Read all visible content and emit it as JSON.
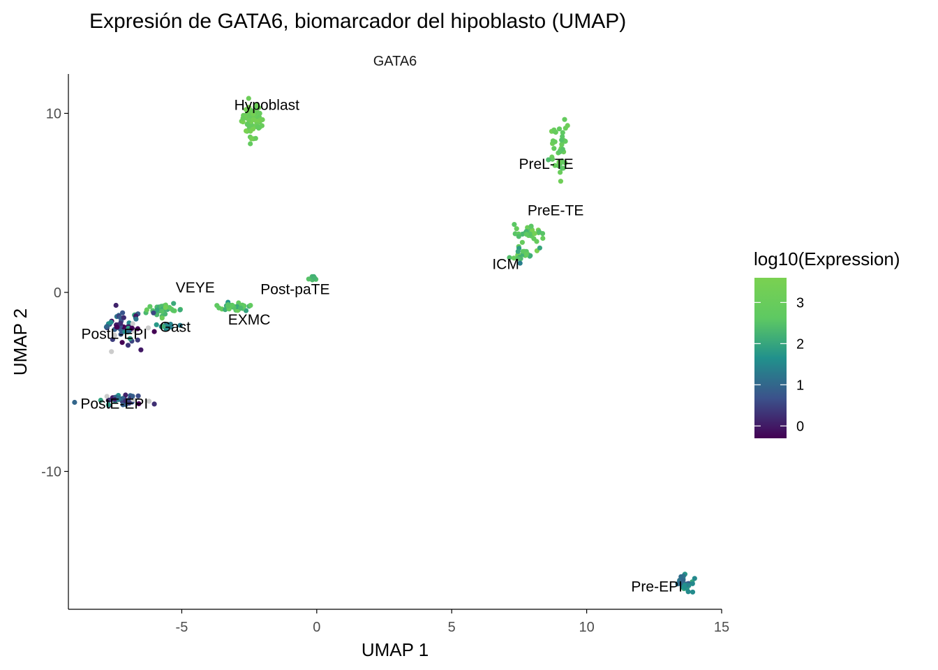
{
  "chart_data": {
    "type": "scatter",
    "title": "Expresión de GATA6, biomarcador del hipoblasto (UMAP)",
    "subtitle": "GATA6",
    "xlabel": "UMAP 1",
    "ylabel": "UMAP 2",
    "xlim": [
      -9.2,
      15
    ],
    "ylim": [
      -17.7,
      12.2
    ],
    "xticks": [
      -5,
      0,
      5,
      10,
      15
    ],
    "yticks": [
      -10,
      0,
      10
    ],
    "xtick_labels": [
      "-5",
      "0",
      "5",
      "10",
      "15"
    ],
    "ytick_labels": [
      "-10",
      "0",
      "10"
    ],
    "grid": false,
    "legend": {
      "title": "log10(Expression)",
      "placement": "right",
      "colormap": "viridis",
      "range": [
        -0.3,
        3.6
      ],
      "ticks": [
        0,
        1,
        2,
        3
      ],
      "tick_labels": [
        "0",
        "1",
        "2",
        "3"
      ],
      "colors": [
        "#440154",
        "#3b528b",
        "#21918c",
        "#5ec962",
        "#7ad151"
      ]
    },
    "na_color": "#cccccc",
    "clusters": [
      {
        "label": "Hypoblast",
        "label_pos": [
          -1.85,
          10.2
        ],
        "center": [
          -2.4,
          9.6
        ],
        "spread": [
          0.35,
          0.9
        ],
        "expression": 3.1,
        "expr_sd": 0.25,
        "n": 70
      },
      {
        "label": "PreL-TE",
        "label_pos": [
          8.5,
          6.9
        ],
        "center": [
          9.0,
          8.1
        ],
        "spread": [
          0.35,
          1.5
        ],
        "expression": 2.9,
        "expr_sd": 0.3,
        "n": 40
      },
      {
        "label": "PreE-TE",
        "label_pos": [
          8.85,
          4.3
        ],
        "center": [
          7.9,
          3.3
        ],
        "spread": [
          0.5,
          0.4
        ],
        "expression": 2.7,
        "expr_sd": 0.3,
        "n": 30
      },
      {
        "label": "ICM",
        "label_pos": [
          7.0,
          1.3
        ],
        "center": [
          7.7,
          2.1
        ],
        "spread": [
          0.5,
          0.4
        ],
        "expression": 2.5,
        "expr_sd": 0.4,
        "n": 25
      },
      {
        "label": "VEYE",
        "label_pos": [
          -4.5,
          0.0
        ],
        "center": [
          -5.6,
          -1.0
        ],
        "spread": [
          0.6,
          0.3
        ],
        "expression": 2.5,
        "expr_sd": 0.4,
        "n": 30
      },
      {
        "label": "Post-paTE",
        "label_pos": [
          -0.8,
          -0.1
        ],
        "center": [
          -0.15,
          0.8
        ],
        "spread": [
          0.15,
          0.15
        ],
        "expression": 2.3,
        "expr_sd": 0.1,
        "n": 6
      },
      {
        "label": "EXMC",
        "label_pos": [
          -2.5,
          -1.8
        ],
        "center": [
          -3.1,
          -0.8
        ],
        "spread": [
          0.6,
          0.2
        ],
        "expression": 2.5,
        "expr_sd": 0.3,
        "n": 35
      },
      {
        "label": "Gast",
        "label_pos": [
          -5.25,
          -2.2
        ],
        "center": [
          -5.6,
          -1.8
        ],
        "spread": [
          0.3,
          0.2
        ],
        "expression": 1.6,
        "expr_sd": 0.5,
        "n": 12
      },
      {
        "label": "PostL-EPI",
        "label_pos": [
          -7.5,
          -2.6
        ],
        "center": [
          -7.2,
          -1.9
        ],
        "spread": [
          0.7,
          0.9
        ],
        "expression": 0.7,
        "expr_sd": 0.8,
        "n": 60
      },
      {
        "label": "PostE-EPI",
        "label_pos": [
          -7.5,
          -6.5
        ],
        "center": [
          -7.2,
          -6.0
        ],
        "spread": [
          0.8,
          0.3
        ],
        "expression": 0.5,
        "expr_sd": 0.8,
        "n": 45
      },
      {
        "label": "Pre-EPI",
        "label_pos": [
          12.6,
          -16.7
        ],
        "center": [
          13.6,
          -16.3
        ],
        "spread": [
          0.3,
          0.4
        ],
        "expression": 1.4,
        "expr_sd": 0.3,
        "n": 30
      }
    ]
  }
}
